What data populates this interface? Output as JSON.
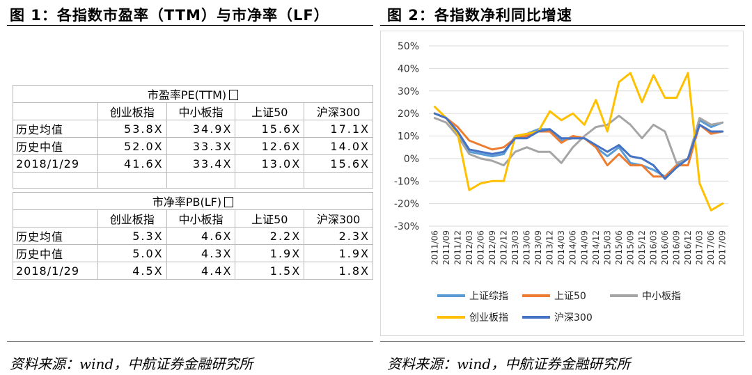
{
  "figure1": {
    "title": "图 1：各指数市盈率（TTM）与市净率（LF）",
    "source": "资料来源：wind，中航证券金融研究所",
    "pe_table": {
      "title": "市盈率PE(TTM)",
      "columns": [
        "创业板指",
        "中小板指",
        "上证50",
        "沪深300"
      ],
      "rows": [
        {
          "label": "历史均值",
          "values": [
            "53.8X",
            "34.9X",
            "15.6X",
            "17.1X"
          ]
        },
        {
          "label": "历史中值",
          "values": [
            "52.0X",
            "33.3X",
            "12.6X",
            "14.0X"
          ]
        },
        {
          "label": "2018/1/29",
          "values": [
            "41.6X",
            "33.4X",
            "13.0X",
            "15.6X"
          ]
        }
      ]
    },
    "pb_table": {
      "title": "市净率PB(LF)",
      "columns": [
        "创业板指",
        "中小板指",
        "上证50",
        "沪深300"
      ],
      "rows": [
        {
          "label": "历史均值",
          "values": [
            "5.3X",
            "4.6X",
            "2.2X",
            "2.3X"
          ]
        },
        {
          "label": "历史中值",
          "values": [
            "5.0X",
            "4.3X",
            "1.9X",
            "1.9X"
          ]
        },
        {
          "label": "2018/1/29",
          "values": [
            "4.5X",
            "4.4X",
            "1.5X",
            "1.8X"
          ]
        }
      ]
    }
  },
  "figure2": {
    "title": "图 2：各指数净利同比增速",
    "source": "资料来源：wind，中航证券金融研究所"
  },
  "chart_data": {
    "type": "line",
    "y_ticks": [
      "50%",
      "40%",
      "30%",
      "20%",
      "10%",
      "0%",
      "-10%",
      "-20%",
      "-30%"
    ],
    "ylim": [
      -30,
      50
    ],
    "y_unit": "%",
    "x": [
      "2011/06",
      "2011/09",
      "2011/12",
      "2012/03",
      "2012/06",
      "2012/09",
      "2012/12",
      "2013/03",
      "2013/06",
      "2013/09",
      "2013/12",
      "2014/03",
      "2014/06",
      "2014/09",
      "2014/12",
      "2015/03",
      "2015/06",
      "2015/09",
      "2015/12",
      "2016/03",
      "2016/06",
      "2016/09",
      "2016/12",
      "2017/03",
      "2017/06",
      "2017/09"
    ],
    "grid": true,
    "legend_position": "bottom",
    "series": [
      {
        "name": "上证综指",
        "color": "#5b9bd5",
        "values": [
          20,
          18,
          12,
          3,
          2,
          1,
          2,
          10,
          11,
          13,
          13,
          8,
          9,
          9,
          5,
          1,
          5,
          -2,
          -3,
          -5,
          -8,
          -3,
          0,
          17,
          14,
          16
        ]
      },
      {
        "name": "上证50",
        "color": "#ed7d31",
        "values": [
          20,
          18,
          14,
          8,
          6,
          4,
          5,
          9,
          10,
          12,
          12,
          7,
          10,
          9,
          5,
          -3,
          2,
          -3,
          -3,
          -8,
          -8,
          -3,
          -3,
          15,
          11,
          12
        ]
      },
      {
        "name": "中小板指",
        "color": "#a5a5a5",
        "values": [
          18,
          16,
          10,
          2,
          0,
          -1,
          -3,
          3,
          5,
          3,
          3,
          -2,
          5,
          10,
          14,
          15,
          19,
          15,
          9,
          15,
          12,
          -2,
          0,
          18,
          15,
          16
        ]
      },
      {
        "name": "创业板指",
        "color": "#ffc000",
        "values": [
          23,
          18,
          11,
          -14,
          -11,
          -10,
          -10,
          10,
          11,
          12,
          21,
          17,
          20,
          15,
          26,
          12,
          34,
          38,
          25,
          37,
          27,
          27,
          38,
          -11,
          -23,
          -20
        ]
      },
      {
        "name": "沪深300",
        "color": "#4472c4",
        "values": [
          20,
          18,
          12,
          4,
          3,
          2,
          3,
          9,
          9,
          12,
          13,
          9,
          9,
          9,
          6,
          3,
          6,
          1,
          0,
          -3,
          -9,
          -4,
          0,
          15,
          12,
          12
        ]
      }
    ]
  }
}
